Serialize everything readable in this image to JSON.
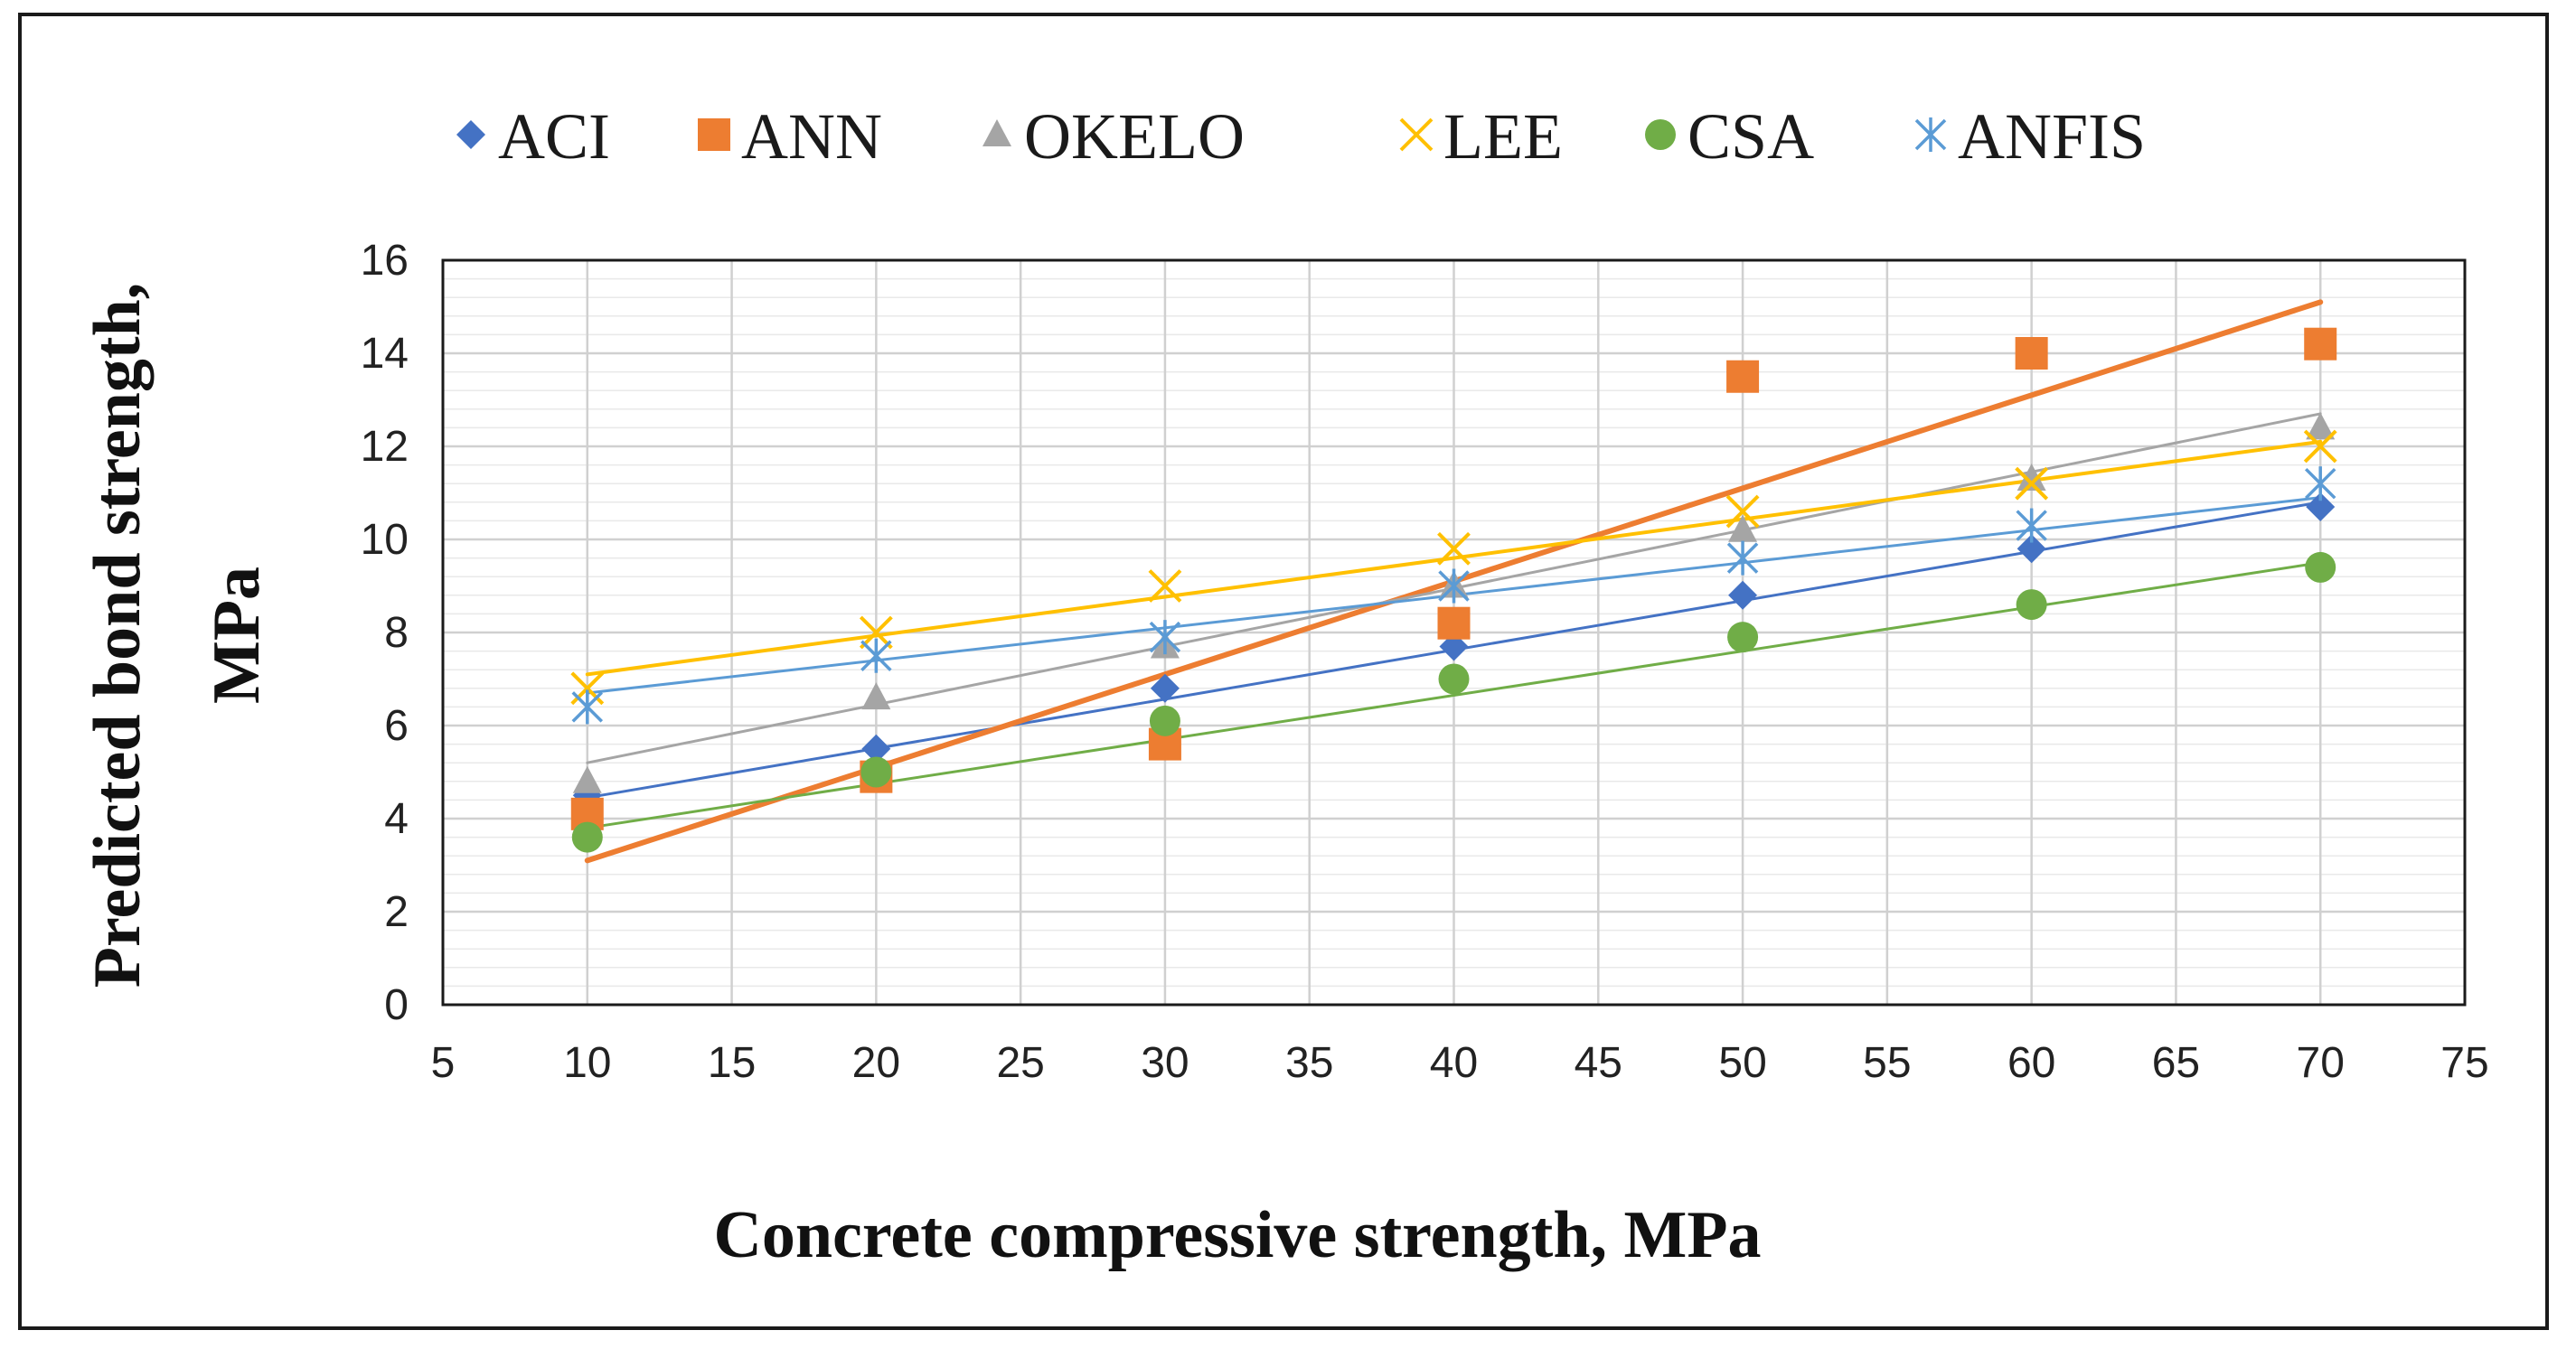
{
  "chart_data": {
    "type": "scatter",
    "title": "",
    "xlabel": "Concrete compressive strength, MPa",
    "ylabel_lines": [
      "Predicted  bond strength,",
      "MPa"
    ],
    "xlim": [
      5,
      75
    ],
    "ylim": [
      0,
      16
    ],
    "x_ticks": [
      5,
      10,
      15,
      20,
      25,
      30,
      35,
      40,
      45,
      50,
      55,
      60,
      65,
      70,
      75
    ],
    "y_ticks": [
      0,
      2,
      4,
      6,
      8,
      10,
      12,
      14,
      16
    ],
    "y_minor_step": 0.4,
    "grid": true,
    "legend_position": "top",
    "x": [
      10,
      20,
      30,
      40,
      50,
      60,
      70
    ],
    "series": [
      {
        "name": "ACI",
        "marker": "diamond",
        "color": "#4472C4",
        "trendline_width": 3,
        "values": [
          4.5,
          5.5,
          6.8,
          7.7,
          8.8,
          9.8,
          10.7
        ],
        "trendline": [
          4.45,
          10.8
        ]
      },
      {
        "name": "ANN",
        "marker": "square",
        "color": "#ED7D31",
        "trendline_width": 6,
        "values": [
          4.1,
          4.9,
          5.6,
          8.2,
          13.5,
          14.0,
          14.2
        ],
        "trendline": [
          3.1,
          15.1
        ]
      },
      {
        "name": "OKELO",
        "marker": "triangle",
        "color": "#A5A5A5",
        "trendline_width": 3,
        "values": [
          4.8,
          6.6,
          7.7,
          9.0,
          10.2,
          11.3,
          12.4
        ],
        "trendline": [
          5.2,
          12.7
        ]
      },
      {
        "name": "LEE",
        "marker": "x",
        "color": "#FFC000",
        "trendline_width": 4,
        "values": [
          6.8,
          8.0,
          9.0,
          9.8,
          10.6,
          11.2,
          12.0
        ],
        "trendline": [
          7.1,
          12.1
        ]
      },
      {
        "name": "CSA",
        "marker": "circle",
        "color": "#70AD47",
        "trendline_width": 3,
        "values": [
          3.6,
          5.0,
          6.1,
          7.0,
          7.9,
          8.6,
          9.4
        ],
        "trendline": [
          3.8,
          9.5
        ]
      },
      {
        "name": "ANFIS",
        "marker": "asterisk",
        "color": "#5B9BD5",
        "trendline_width": 3,
        "values": [
          6.4,
          7.5,
          7.9,
          9.0,
          9.6,
          10.3,
          11.2
        ],
        "trendline": [
          6.7,
          10.9
        ]
      }
    ]
  }
}
